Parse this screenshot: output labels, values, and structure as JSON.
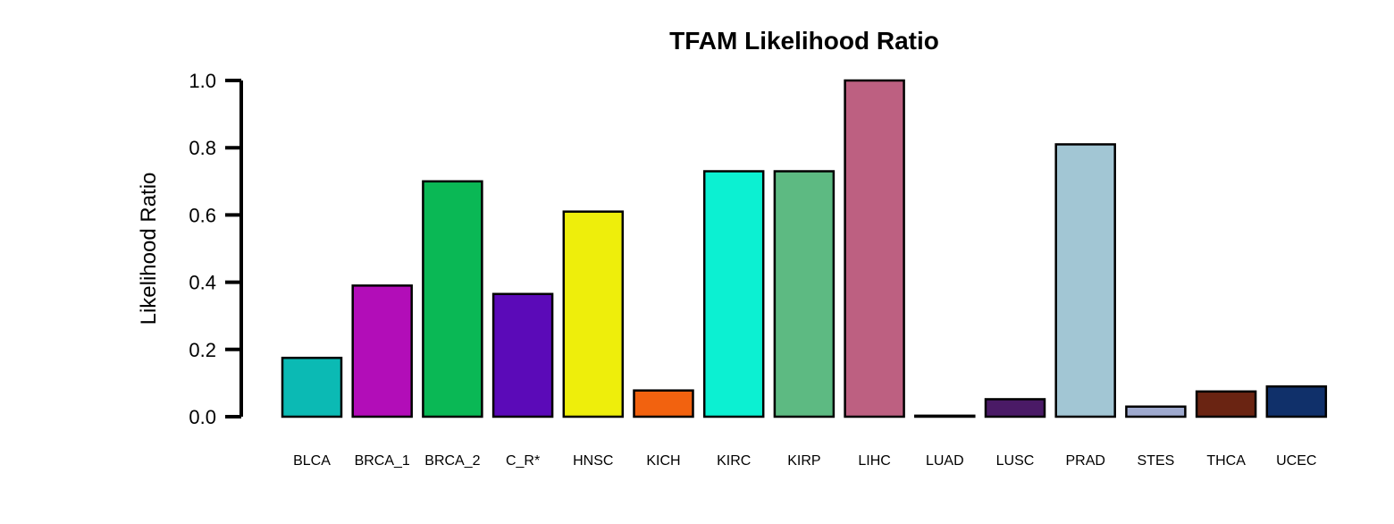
{
  "chart_data": {
    "type": "bar",
    "title": "TFAM Likelihood Ratio",
    "xlabel": "",
    "ylabel": "Likelihood Ratio",
    "ylim": [
      0,
      1
    ],
    "yticks": [
      "0.0",
      "0.2",
      "0.4",
      "0.6",
      "0.8",
      "1.0"
    ],
    "grid": false,
    "categories": [
      "BLCA",
      "BRCA_1",
      "BRCA_2",
      "C_R*",
      "HNSC",
      "KICH",
      "KIRC",
      "KIRP",
      "LIHC",
      "LUAD",
      "LUSC",
      "PRAD",
      "STES",
      "THCA",
      "UCEC"
    ],
    "values": [
      0.175,
      0.39,
      0.7,
      0.365,
      0.61,
      0.078,
      0.73,
      0.73,
      1.0,
      0.003,
      0.052,
      0.81,
      0.03,
      0.075,
      0.09
    ],
    "colors": [
      "#0BBAB4",
      "#B20DB8",
      "#0AB855",
      "#5B0AB8",
      "#EEEE0B",
      "#F2620F",
      "#0CF0D2",
      "#5DBA82",
      "#BD6081",
      "#0A0A0A",
      "#4A1A66",
      "#A2C6D4",
      "#9EA9CE",
      "#6A2412",
      "#10306A"
    ]
  }
}
